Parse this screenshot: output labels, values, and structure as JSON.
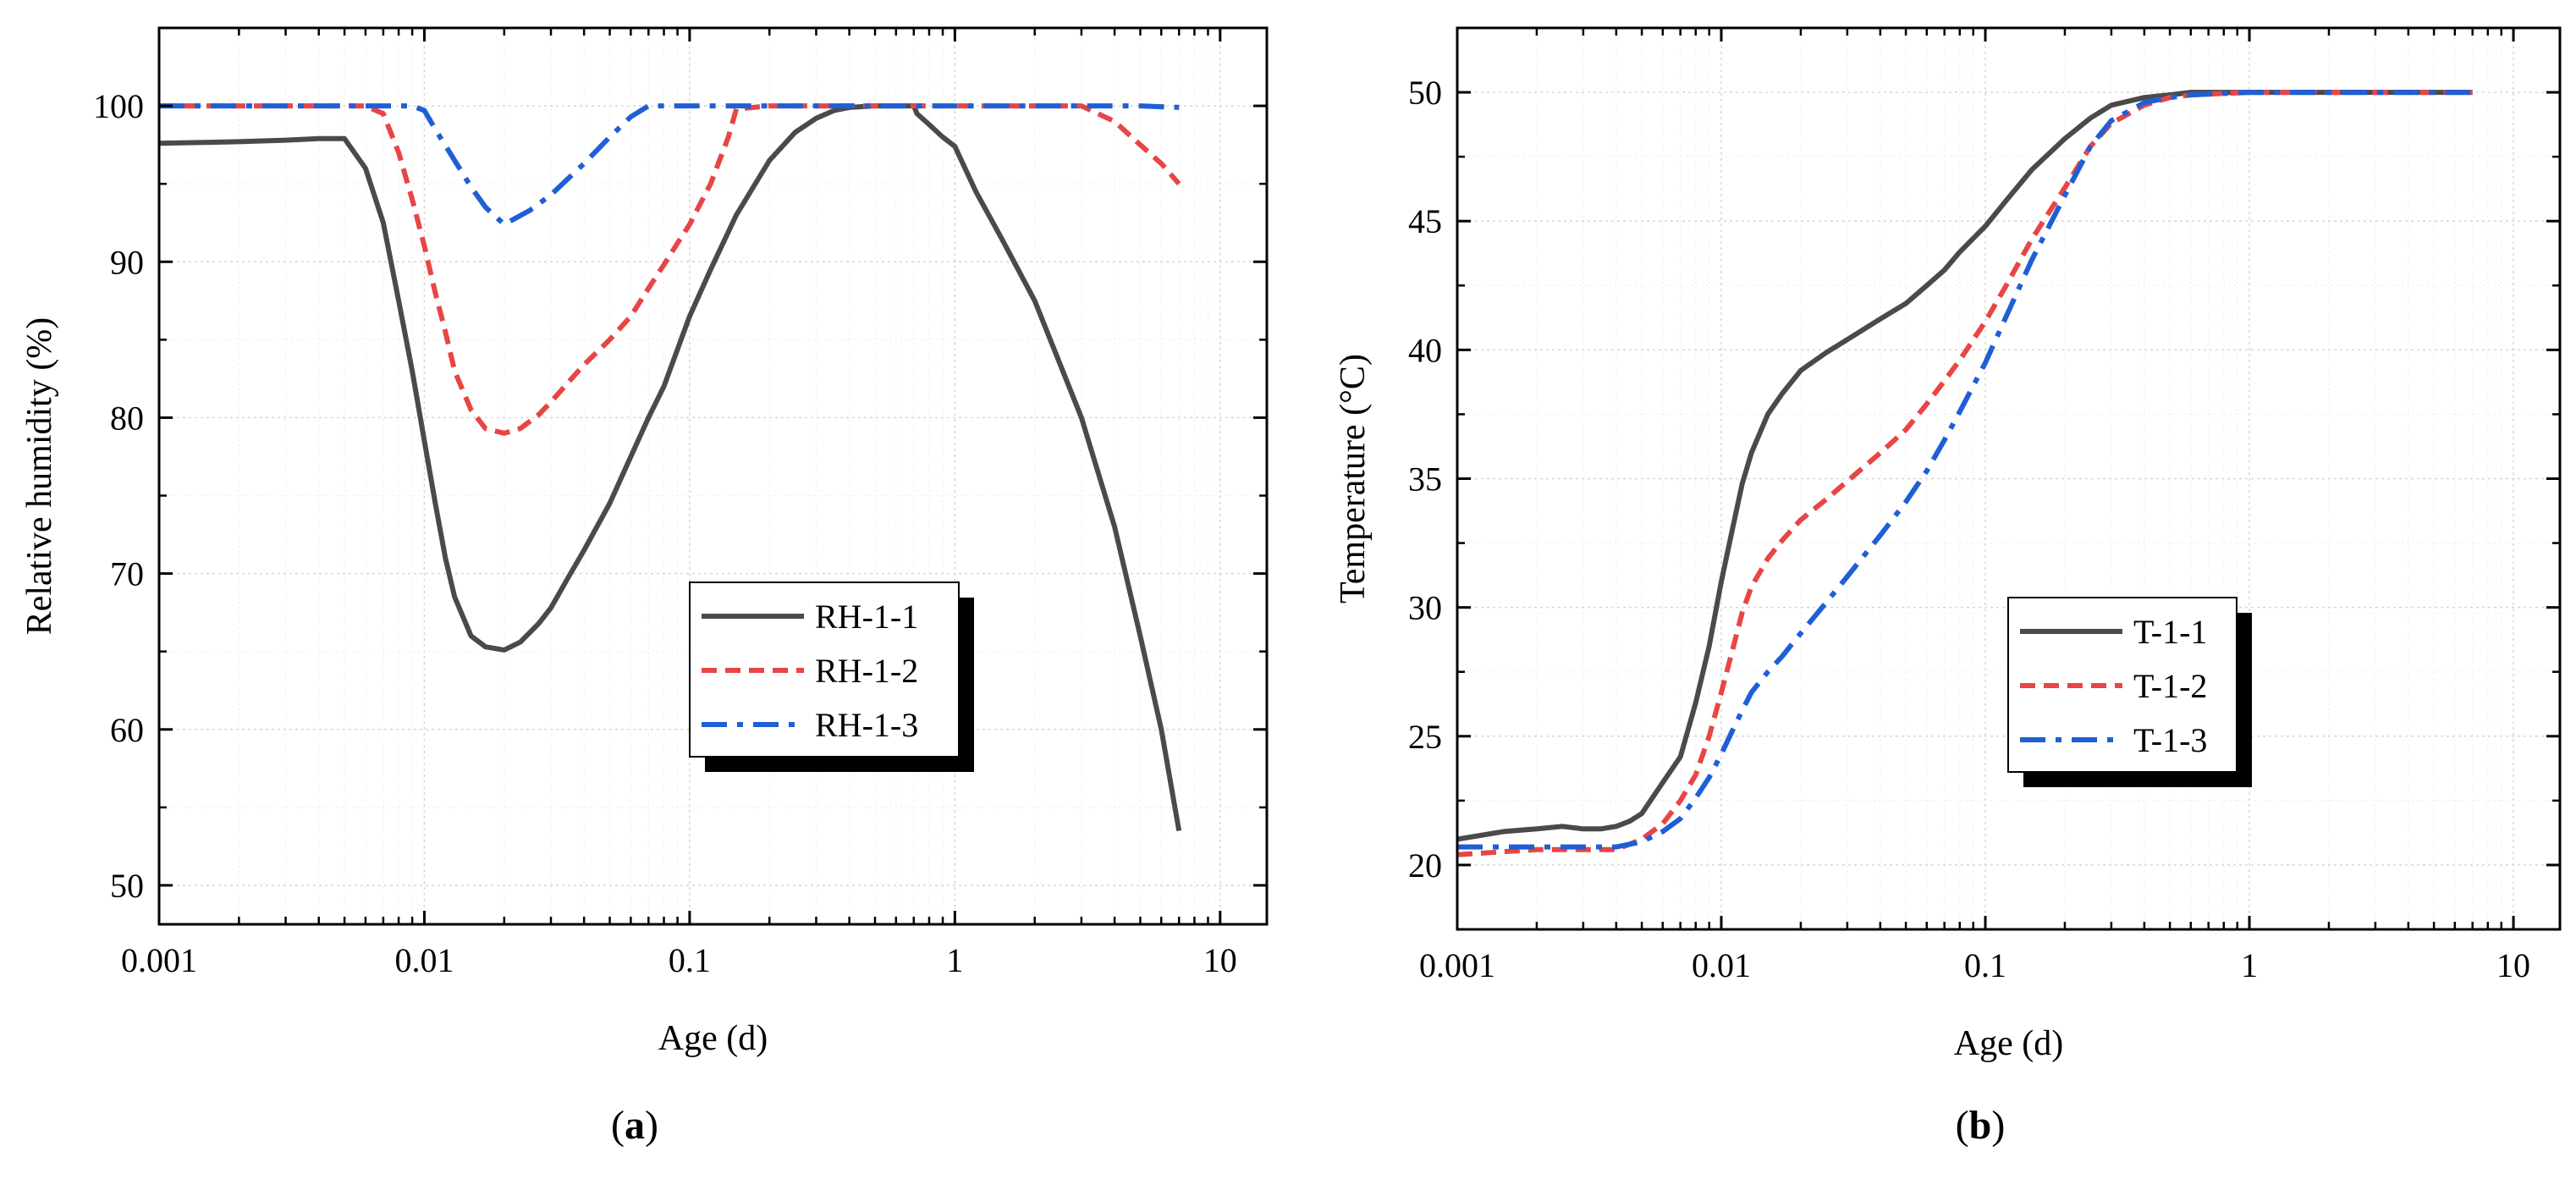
{
  "chart_data": [
    {
      "panel": "a",
      "type": "line",
      "xscale": "log",
      "xlabel": "Age (d)",
      "ylabel": "Relative humidity (%)",
      "xlim": [
        0.001,
        15
      ],
      "ylim": [
        47.5,
        105
      ],
      "xticks": [
        0.001,
        0.01,
        0.1,
        1,
        10
      ],
      "xtick_labels": [
        "0.001",
        "0.01",
        "0.1",
        "1",
        "10"
      ],
      "yticks": [
        50,
        60,
        70,
        80,
        90,
        100
      ],
      "ytick_labels": [
        "50",
        "60",
        "70",
        "80",
        "90",
        "100"
      ],
      "grid": true,
      "legend": "center-right",
      "series": [
        {
          "name": "RH-1-1",
          "color": "#4a4a4a",
          "style": "solid",
          "x": [
            0.001,
            0.002,
            0.003,
            0.004,
            0.005,
            0.006,
            0.007,
            0.008,
            0.009,
            0.01,
            0.011,
            0.012,
            0.013,
            0.015,
            0.017,
            0.02,
            0.023,
            0.027,
            0.03,
            0.035,
            0.04,
            0.05,
            0.06,
            0.07,
            0.08,
            0.1,
            0.12,
            0.15,
            0.2,
            0.25,
            0.3,
            0.35,
            0.4,
            0.5,
            0.6,
            0.7,
            0.72,
            0.8,
            0.9,
            1.0,
            1.2,
            1.5,
            2,
            3,
            4,
            5,
            6,
            7
          ],
          "y": [
            97.6,
            97.7,
            97.8,
            97.9,
            97.9,
            96,
            92.5,
            87.5,
            83,
            78.5,
            74.5,
            71,
            68.5,
            66,
            65.3,
            65.1,
            65.6,
            66.8,
            67.8,
            69.8,
            71.5,
            74.5,
            77.5,
            80,
            82,
            86.5,
            89.5,
            93,
            96.5,
            98.3,
            99.2,
            99.7,
            99.9,
            100,
            100,
            100,
            99.5,
            98.8,
            98,
            97.4,
            94.5,
            91.5,
            87.5,
            80,
            73,
            66,
            60,
            53.5
          ]
        },
        {
          "name": "RH-1-2",
          "color": "#e84545",
          "style": "dash",
          "x": [
            0.001,
            0.003,
            0.006,
            0.007,
            0.008,
            0.009,
            0.01,
            0.011,
            0.012,
            0.013,
            0.015,
            0.017,
            0.02,
            0.023,
            0.027,
            0.03,
            0.035,
            0.04,
            0.05,
            0.06,
            0.07,
            0.08,
            0.09,
            0.1,
            0.12,
            0.14,
            0.15,
            0.2,
            0.5,
            1,
            2,
            3,
            4,
            5,
            6,
            7
          ],
          "y": [
            100,
            100,
            100,
            99.5,
            97,
            94,
            91,
            88,
            85.5,
            83,
            80.5,
            79.3,
            79,
            79.3,
            80.2,
            81,
            82.3,
            83.4,
            85,
            86.5,
            88.3,
            89.8,
            91.2,
            92.4,
            95,
            98,
            99.8,
            100,
            100,
            100,
            100,
            100,
            99,
            97.5,
            96.3,
            95
          ]
        },
        {
          "name": "RH-1-3",
          "color": "#1f5fd6",
          "style": "dashdot",
          "x": [
            0.001,
            0.005,
            0.009,
            0.01,
            0.011,
            0.013,
            0.015,
            0.017,
            0.02,
            0.025,
            0.03,
            0.04,
            0.05,
            0.06,
            0.07,
            0.1,
            0.5,
            1,
            3,
            5,
            7
          ],
          "y": [
            100,
            100,
            100,
            99.7,
            98.5,
            96.5,
            94.8,
            93.5,
            92.4,
            93.3,
            94.3,
            96.3,
            98,
            99.3,
            100,
            100,
            100,
            100,
            100,
            100,
            99.9
          ]
        }
      ]
    },
    {
      "panel": "b",
      "type": "line",
      "xscale": "log",
      "xlabel": "Age (d)",
      "ylabel": "Temperature (°C)",
      "xlim": [
        0.001,
        15
      ],
      "ylim": [
        17.5,
        52.5
      ],
      "xticks": [
        0.001,
        0.01,
        0.1,
        1,
        10
      ],
      "xtick_labels": [
        "0.001",
        "0.01",
        "0.1",
        "1",
        "10"
      ],
      "yticks": [
        20,
        25,
        30,
        35,
        40,
        45,
        50
      ],
      "ytick_labels": [
        "20",
        "25",
        "30",
        "35",
        "40",
        "45",
        "50"
      ],
      "grid": true,
      "legend": "center-right",
      "series": [
        {
          "name": "T-1-1",
          "color": "#4a4a4a",
          "style": "solid",
          "x": [
            0.001,
            0.0015,
            0.002,
            0.0025,
            0.003,
            0.0035,
            0.004,
            0.0045,
            0.005,
            0.006,
            0.007,
            0.008,
            0.009,
            0.01,
            0.011,
            0.012,
            0.013,
            0.015,
            0.017,
            0.02,
            0.025,
            0.03,
            0.04,
            0.05,
            0.06,
            0.07,
            0.08,
            0.1,
            0.12,
            0.15,
            0.2,
            0.25,
            0.3,
            0.4,
            0.5,
            0.6,
            1,
            3,
            7
          ],
          "y": [
            21,
            21.3,
            21.4,
            21.5,
            21.4,
            21.4,
            21.5,
            21.7,
            22,
            23.2,
            24.2,
            26.3,
            28.5,
            31,
            33,
            34.8,
            36,
            37.5,
            38.3,
            39.2,
            39.9,
            40.4,
            41.2,
            41.8,
            42.5,
            43.1,
            43.8,
            44.8,
            45.8,
            47,
            48.2,
            49,
            49.5,
            49.8,
            49.9,
            50,
            50,
            50,
            50
          ]
        },
        {
          "name": "T-1-2",
          "color": "#e84545",
          "style": "dash",
          "x": [
            0.001,
            0.002,
            0.003,
            0.004,
            0.005,
            0.006,
            0.007,
            0.008,
            0.009,
            0.01,
            0.011,
            0.012,
            0.013,
            0.015,
            0.017,
            0.02,
            0.025,
            0.03,
            0.04,
            0.05,
            0.06,
            0.07,
            0.08,
            0.1,
            0.12,
            0.15,
            0.2,
            0.25,
            0.3,
            0.4,
            0.5,
            0.6,
            1,
            3,
            7
          ],
          "y": [
            20.4,
            20.6,
            20.6,
            20.6,
            21,
            21.6,
            22.5,
            23.5,
            25,
            26.7,
            28.3,
            29.8,
            30.8,
            31.9,
            32.6,
            33.4,
            34.2,
            34.9,
            36,
            36.9,
            37.9,
            38.8,
            39.6,
            41.1,
            42.5,
            44.3,
            46.3,
            47.9,
            48.8,
            49.5,
            49.8,
            49.9,
            50,
            50,
            50
          ]
        },
        {
          "name": "T-1-3",
          "color": "#1f5fd6",
          "style": "dashdot",
          "x": [
            0.001,
            0.002,
            0.003,
            0.004,
            0.005,
            0.006,
            0.007,
            0.008,
            0.009,
            0.01,
            0.011,
            0.012,
            0.013,
            0.015,
            0.017,
            0.02,
            0.025,
            0.03,
            0.04,
            0.05,
            0.06,
            0.07,
            0.08,
            0.1,
            0.12,
            0.15,
            0.2,
            0.25,
            0.3,
            0.4,
            0.5,
            0.6,
            1,
            3,
            7
          ],
          "y": [
            20.7,
            20.7,
            20.7,
            20.7,
            20.9,
            21.3,
            21.8,
            22.6,
            23.4,
            24.3,
            25.2,
            26,
            26.7,
            27.5,
            28.1,
            29,
            30.2,
            31.2,
            32.8,
            34.1,
            35.3,
            36.5,
            37.6,
            39.5,
            41.3,
            43.5,
            46,
            47.9,
            48.9,
            49.6,
            49.8,
            49.9,
            50,
            50,
            50
          ]
        }
      ]
    }
  ],
  "panels": [
    {
      "label_prefix": "(",
      "label_letter": "a",
      "label_suffix": ")"
    },
    {
      "label_prefix": "(",
      "label_letter": "b",
      "label_suffix": ")"
    }
  ]
}
